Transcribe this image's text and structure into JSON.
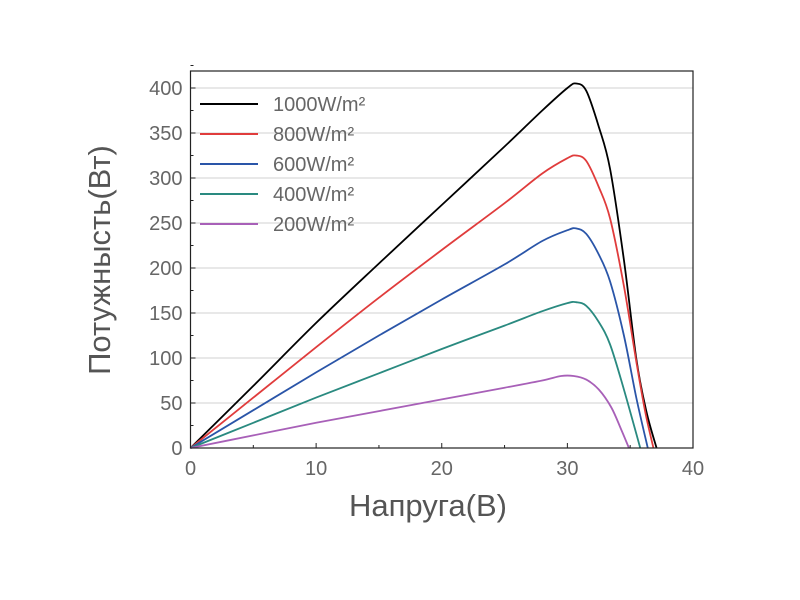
{
  "chart_data": {
    "type": "line",
    "title": "",
    "xlabel": "Напруга(В)",
    "ylabel": "Потужнысть(Вт)",
    "xlim": [
      0,
      40
    ],
    "ylim": [
      0,
      415
    ],
    "xticks": [
      "0",
      "10",
      "20",
      "30",
      "40"
    ],
    "yticks": [
      "0",
      "50",
      "100",
      "150",
      "200",
      "250",
      "300",
      "350",
      "400"
    ],
    "grid": "horizontal",
    "legend": "top-left",
    "series": [
      {
        "name": "1000W/m²",
        "color": "#000000",
        "x": [
          0,
          5,
          10,
          15,
          20,
          25,
          28,
          30,
          30.7,
          31.5,
          32.5,
          33.4,
          34.5,
          35.5,
          36.3,
          37.1
        ],
        "y": [
          0,
          69,
          139,
          205,
          270,
          335,
          375,
          400,
          405,
          397,
          357,
          310,
          209,
          98,
          40,
          0
        ]
      },
      {
        "name": "800W/m²",
        "color": "#e03c3c",
        "x": [
          0,
          5,
          10,
          15,
          20,
          25,
          28,
          30,
          30.7,
          31.5,
          32.5,
          33.4,
          34.5,
          35.5,
          36.2,
          36.85
        ],
        "y": [
          0,
          56,
          112,
          167,
          220,
          272,
          305,
          322,
          325,
          319,
          290,
          255,
          180,
          95,
          40,
          0
        ]
      },
      {
        "name": "600W/m²",
        "color": "#2a55a8",
        "x": [
          0,
          5,
          10,
          15,
          20,
          25,
          28,
          30,
          30.7,
          31.5,
          32.5,
          33.4,
          34.5,
          35.5,
          36.4
        ],
        "y": [
          0,
          42,
          84,
          125,
          165,
          204,
          230,
          242,
          244,
          238,
          215,
          185,
          125,
          55,
          0
        ]
      },
      {
        "name": "400W/m²",
        "color": "#2a8a80",
        "x": [
          0,
          5,
          10,
          15,
          20,
          25,
          28,
          30,
          30.7,
          31.5,
          32.5,
          33.4,
          34.5,
          35.8
        ],
        "y": [
          0,
          28,
          56,
          83,
          110,
          136,
          152,
          161,
          162,
          158,
          140,
          115,
          65,
          0
        ]
      },
      {
        "name": "200W/m²",
        "color": "#a860b8",
        "x": [
          0,
          5,
          10,
          15,
          20,
          25,
          28,
          29.5,
          30.5,
          31.5,
          32.5,
          33.5,
          34.3,
          34.9
        ],
        "y": [
          0,
          14,
          28,
          41,
          54,
          67,
          75,
          80,
          80,
          76,
          65,
          45,
          20,
          0
        ]
      }
    ]
  }
}
